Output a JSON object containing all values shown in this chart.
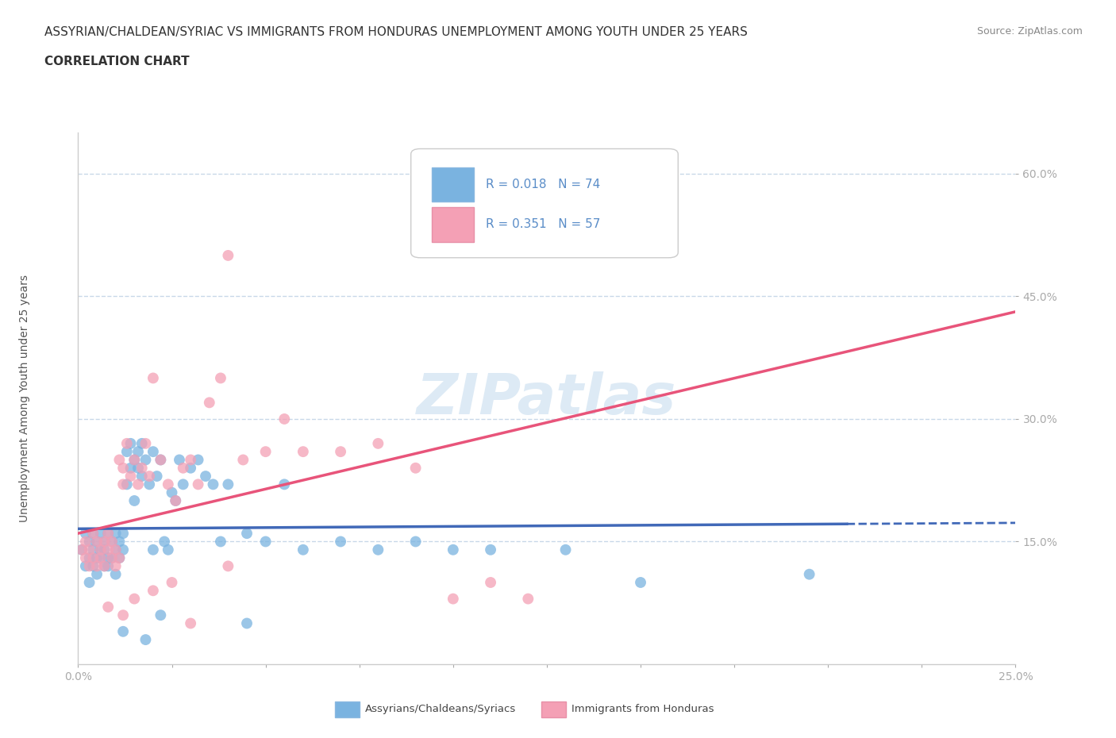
{
  "title": "ASSYRIAN/CHALDEAN/SYRIAC VS IMMIGRANTS FROM HONDURAS UNEMPLOYMENT AMONG YOUTH UNDER 25 YEARS",
  "subtitle": "CORRELATION CHART",
  "source": "Source: ZipAtlas.com",
  "ylabel": "Unemployment Among Youth under 25 years",
  "xlim": [
    0.0,
    0.25
  ],
  "ylim": [
    0.0,
    0.65
  ],
  "ytick_positions": [
    0.15,
    0.3,
    0.45,
    0.6
  ],
  "ytick_labels": [
    "15.0%",
    "30.0%",
    "45.0%",
    "60.0%"
  ],
  "xtick_positions": [
    0.0,
    0.025,
    0.05,
    0.075,
    0.1,
    0.125,
    0.15,
    0.175,
    0.2,
    0.225,
    0.25
  ],
  "xtick_labels": [
    "0.0%",
    "",
    "",
    "",
    "",
    "",
    "",
    "",
    "",
    "",
    "25.0%"
  ],
  "blue_color": "#7ab3e0",
  "pink_color": "#f4a0b5",
  "blue_line_color": "#4169b8",
  "pink_line_color": "#e8547a",
  "axis_color": "#5a8dc8",
  "grid_color": "#c8d8e8",
  "background_color": "#ffffff",
  "watermark": "ZIPatlas",
  "legend_R1": "R = 0.018",
  "legend_N1": "N = 74",
  "legend_R2": "R = 0.351",
  "legend_N2": "N = 57",
  "label_blue": "Assyrians/Chaldeans/Syriacs",
  "label_pink": "Immigrants from Honduras",
  "blue_scatter_x": [
    0.001,
    0.002,
    0.002,
    0.003,
    0.003,
    0.003,
    0.004,
    0.004,
    0.004,
    0.005,
    0.005,
    0.005,
    0.006,
    0.006,
    0.006,
    0.007,
    0.007,
    0.007,
    0.008,
    0.008,
    0.008,
    0.009,
    0.009,
    0.01,
    0.01,
    0.01,
    0.011,
    0.011,
    0.012,
    0.012,
    0.013,
    0.013,
    0.014,
    0.014,
    0.015,
    0.015,
    0.016,
    0.016,
    0.017,
    0.017,
    0.018,
    0.019,
    0.02,
    0.02,
    0.021,
    0.022,
    0.023,
    0.024,
    0.025,
    0.026,
    0.027,
    0.028,
    0.03,
    0.032,
    0.034,
    0.036,
    0.038,
    0.04,
    0.045,
    0.05,
    0.055,
    0.06,
    0.07,
    0.08,
    0.09,
    0.1,
    0.11,
    0.13,
    0.15,
    0.195,
    0.045,
    0.022,
    0.012,
    0.018
  ],
  "blue_scatter_y": [
    0.14,
    0.12,
    0.16,
    0.13,
    0.15,
    0.1,
    0.14,
    0.16,
    0.12,
    0.13,
    0.15,
    0.11,
    0.14,
    0.13,
    0.16,
    0.12,
    0.15,
    0.14,
    0.13,
    0.16,
    0.12,
    0.15,
    0.13,
    0.14,
    0.16,
    0.11,
    0.15,
    0.13,
    0.14,
    0.16,
    0.26,
    0.22,
    0.27,
    0.24,
    0.25,
    0.2,
    0.26,
    0.24,
    0.23,
    0.27,
    0.25,
    0.22,
    0.26,
    0.14,
    0.23,
    0.25,
    0.15,
    0.14,
    0.21,
    0.2,
    0.25,
    0.22,
    0.24,
    0.25,
    0.23,
    0.22,
    0.15,
    0.22,
    0.16,
    0.15,
    0.22,
    0.14,
    0.15,
    0.14,
    0.15,
    0.14,
    0.14,
    0.14,
    0.1,
    0.11,
    0.05,
    0.06,
    0.04,
    0.03
  ],
  "pink_scatter_x": [
    0.001,
    0.002,
    0.002,
    0.003,
    0.003,
    0.004,
    0.004,
    0.005,
    0.005,
    0.006,
    0.006,
    0.007,
    0.007,
    0.008,
    0.008,
    0.009,
    0.009,
    0.01,
    0.01,
    0.011,
    0.011,
    0.012,
    0.012,
    0.013,
    0.014,
    0.015,
    0.016,
    0.017,
    0.018,
    0.019,
    0.02,
    0.022,
    0.024,
    0.026,
    0.028,
    0.03,
    0.032,
    0.035,
    0.038,
    0.04,
    0.044,
    0.05,
    0.055,
    0.06,
    0.07,
    0.08,
    0.09,
    0.1,
    0.11,
    0.12,
    0.04,
    0.025,
    0.015,
    0.02,
    0.03,
    0.008,
    0.012
  ],
  "pink_scatter_y": [
    0.14,
    0.13,
    0.15,
    0.12,
    0.14,
    0.13,
    0.16,
    0.12,
    0.15,
    0.14,
    0.13,
    0.15,
    0.12,
    0.14,
    0.16,
    0.13,
    0.15,
    0.12,
    0.14,
    0.13,
    0.25,
    0.22,
    0.24,
    0.27,
    0.23,
    0.25,
    0.22,
    0.24,
    0.27,
    0.23,
    0.35,
    0.25,
    0.22,
    0.2,
    0.24,
    0.25,
    0.22,
    0.32,
    0.35,
    0.5,
    0.25,
    0.26,
    0.3,
    0.26,
    0.26,
    0.27,
    0.24,
    0.08,
    0.1,
    0.08,
    0.12,
    0.1,
    0.08,
    0.09,
    0.05,
    0.07,
    0.06
  ],
  "title_fontsize": 11,
  "subtitle_fontsize": 11,
  "axis_label_fontsize": 10,
  "tick_fontsize": 10,
  "legend_fontsize": 11
}
